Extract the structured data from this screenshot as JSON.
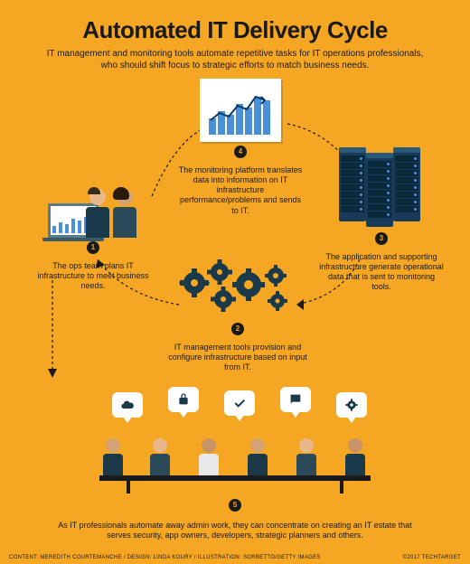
{
  "title": "Automated IT Delivery Cycle",
  "subtitle": "IT management and monitoring tools automate repetitive tasks for IT operations professionals, who should shift focus to strategic efforts to match business needs.",
  "colors": {
    "background": "#f5a623",
    "text_primary": "#1a1a1a",
    "accent_blue": "#4a90d9",
    "dark_navy": "#1a3a4a",
    "server_blue": "#1a3a5a",
    "white": "#ffffff"
  },
  "cycle": {
    "node1": {
      "num": "1",
      "text": "The ops team plans IT infrastructure to meet business needs."
    },
    "node2": {
      "num": "2",
      "text": "IT management tools provision and configure infrastructure based on input from IT."
    },
    "node3": {
      "num": "3",
      "text": "The application and supporting infrastructure generate operational data that is sent to monitoring tools."
    },
    "node4": {
      "num": "4",
      "text": "The monitoring platform translates data into information on IT infrastructure performance/problems and sends to IT."
    },
    "chart_bars": [
      18,
      26,
      22,
      34,
      30,
      42,
      38
    ],
    "laptop_bars": [
      8,
      12,
      10,
      16,
      14,
      18
    ]
  },
  "meeting": {
    "num": "5",
    "text": "As IT professionals automate away admin work, they can concentrate on creating an IT estate that serves security, app owners, developers, strategic planners and others.",
    "bubble_icons": [
      "cloud",
      "lock",
      "check",
      "chat",
      "gear"
    ]
  },
  "footer": {
    "left": "CONTENT: MEREDITH COURTEMANCHE / DESIGN: LINDA KOURY / ILLUSTRATION: SORBETTO/GETTY IMAGES",
    "right": "©2017 TECHTARGET"
  }
}
